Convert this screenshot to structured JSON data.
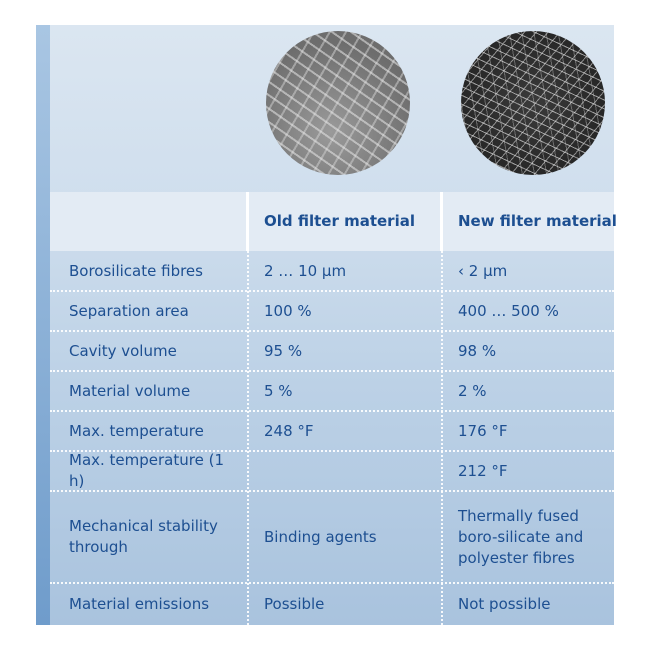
{
  "images": {
    "old": "old-filter-fibre-micrograph",
    "new": "new-filter-fibre-micrograph"
  },
  "header": {
    "col0": "",
    "col1": "Old filter material",
    "col2": "New filter material"
  },
  "rows": [
    {
      "label": "Borosilicate fibres",
      "old": "2 … 10 µm",
      "new": "‹ 2 µm"
    },
    {
      "label": "Separation area",
      "old": "100 %",
      "new": "400 … 500 %"
    },
    {
      "label": "Cavity volume",
      "old": "95 %",
      "new": "98 %"
    },
    {
      "label": "Material volume",
      "old": "5 %",
      "new": "2 %"
    },
    {
      "label": "Max. temperature",
      "old": "248 °F",
      "new": "176 °F"
    },
    {
      "label": "Max. temperature (1 h)",
      "old": "",
      "new": "212 °F"
    },
    {
      "label": "Mechanical stability through",
      "old": "Binding agents",
      "new": "Thermally fused boro-silicate and polyester fibres"
    },
    {
      "label": "Material emissions",
      "old": "Possible",
      "new": "Not possible"
    }
  ],
  "colors": {
    "text": "#1d4f91",
    "panel": "#cfdeed"
  }
}
